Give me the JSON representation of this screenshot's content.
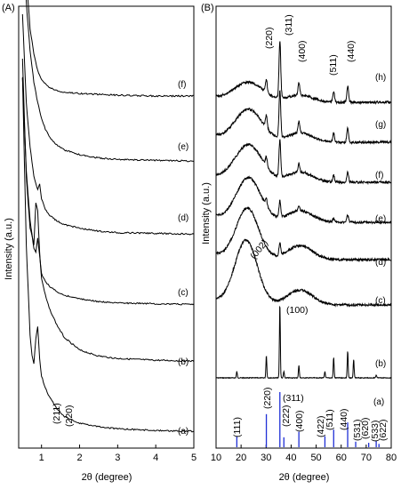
{
  "chart_data": [
    {
      "panel": "(A)",
      "type": "line",
      "xlabel": "2θ (degree)",
      "ylabel": "Intensity (a.u.)",
      "xlim": [
        0.4,
        5
      ],
      "xticks": [
        "1",
        "2",
        "3",
        "4",
        "5"
      ],
      "series": [
        {
          "name": "(a)",
          "x": [
            0.5,
            0.6,
            0.7,
            0.75,
            0.8,
            0.85,
            0.9,
            0.95,
            1.0,
            1.1,
            1.2,
            1.4,
            1.6,
            2.0,
            2.5,
            3,
            4,
            5
          ],
          "y": [
            4.35,
            2.3,
            1.2,
            0.95,
            0.85,
            1.15,
            1.3,
            0.9,
            0.7,
            0.55,
            0.45,
            0.3,
            0.2,
            0.12,
            0.08,
            0.05,
            0.03,
            0.02
          ]
        },
        {
          "name": "(b)",
          "x": [
            0.5,
            0.6,
            0.7,
            0.8,
            0.85,
            0.9,
            0.95,
            1.0,
            1.1,
            1.2,
            1.4,
            1.6,
            2.0,
            2.5,
            3,
            4,
            5
          ],
          "y": [
            3.6,
            2.2,
            1.6,
            1.4,
            1.9,
            1.8,
            1.3,
            1.0,
            0.8,
            0.65,
            0.45,
            0.3,
            0.15,
            0.08,
            0.05,
            0.03,
            0.02
          ]
        },
        {
          "name": "(c)",
          "x": [
            0.5,
            0.6,
            0.7,
            0.8,
            0.85,
            0.9,
            0.95,
            1.0,
            1.1,
            1.2,
            1.4,
            1.6,
            2.0,
            2.5,
            3,
            4,
            5
          ],
          "y": [
            3.2,
            1.9,
            1.2,
            0.8,
            0.75,
            0.95,
            0.7,
            0.45,
            0.35,
            0.28,
            0.2,
            0.15,
            0.1,
            0.06,
            0.04,
            0.03,
            0.02
          ]
        },
        {
          "name": "(d)",
          "x": [
            0.5,
            0.6,
            0.7,
            0.8,
            0.9,
            0.95,
            1.0,
            1.1,
            1.2,
            1.4,
            1.6,
            2.0,
            2.5,
            3,
            4,
            5
          ],
          "y": [
            3.0,
            1.8,
            1.2,
            0.8,
            0.62,
            0.7,
            0.5,
            0.35,
            0.28,
            0.2,
            0.15,
            0.1,
            0.06,
            0.04,
            0.03,
            0.02
          ]
        },
        {
          "name": "(e)",
          "x": [
            0.5,
            0.6,
            0.7,
            0.8,
            0.9,
            1.0,
            1.1,
            1.2,
            1.4,
            1.6,
            2.0,
            2.5,
            3,
            4,
            5
          ],
          "y": [
            3.1,
            2.0,
            1.4,
            1.0,
            0.75,
            0.55,
            0.42,
            0.33,
            0.22,
            0.16,
            0.1,
            0.06,
            0.04,
            0.03,
            0.02
          ]
        },
        {
          "name": "(f)",
          "x": [
            0.5,
            0.55,
            0.6,
            0.7,
            0.8,
            0.9,
            1.0,
            1.2,
            1.5,
            2.0,
            2.5,
            3,
            4,
            5
          ],
          "y": [
            2.9,
            2.0,
            1.4,
            0.8,
            0.5,
            0.3,
            0.2,
            0.1,
            0.05,
            0.03,
            0.02,
            0.01,
            0.0,
            0.0
          ]
        }
      ],
      "peak_labels": [
        "(211)",
        "(220)"
      ]
    },
    {
      "panel": "(B)",
      "type": "line",
      "xlabel": "2θ (degree)",
      "ylabel": "Intensity (a.u.)",
      "xlim": [
        10,
        80
      ],
      "xticks": [
        "10",
        "20",
        "30",
        "40",
        "50",
        "60",
        "70",
        "80"
      ],
      "reference_label": "(a)",
      "reference_lines": [
        {
          "x": 18.3,
          "h": 0.2,
          "label": "(111)"
        },
        {
          "x": 30.1,
          "h": 0.6,
          "label": "(220)"
        },
        {
          "x": 35.5,
          "h": 1.0,
          "label": "(311)"
        },
        {
          "x": 37.1,
          "h": 0.18,
          "label": "(222)"
        },
        {
          "x": 43.1,
          "h": 0.28,
          "label": "(400)"
        },
        {
          "x": 53.5,
          "h": 0.2,
          "label": "(422)"
        },
        {
          "x": 57.0,
          "h": 0.32,
          "label": "(511)"
        },
        {
          "x": 62.6,
          "h": 0.45,
          "label": "(440)"
        },
        {
          "x": 65.8,
          "h": 0.1,
          "label": "(531)"
        },
        {
          "x": 71.0,
          "h": 0.08,
          "label": "(620)"
        },
        {
          "x": 74.0,
          "h": 0.12,
          "label": "(533)"
        },
        {
          "x": 75.1,
          "h": 0.06,
          "label": "(622)"
        }
      ],
      "series": [
        {
          "name": "(b)",
          "kind": "sharp",
          "peaks": [
            [
              18.3,
              0.12
            ],
            [
              30.1,
              0.42
            ],
            [
              35.5,
              1.4
            ],
            [
              37.1,
              0.12
            ],
            [
              43.1,
              0.24
            ],
            [
              53.5,
              0.12
            ],
            [
              57.0,
              0.38
            ],
            [
              62.6,
              0.5
            ],
            [
              65.0,
              0.35
            ],
            [
              74.0,
              0.05
            ]
          ]
        },
        {
          "name": "(c)",
          "kind": "broad",
          "humps": [
            [
              22,
              1.5,
              4.5
            ],
            [
              43.5,
              0.35,
              5
            ]
          ],
          "peaks": []
        },
        {
          "name": "(d)",
          "kind": "broad",
          "humps": [
            [
              22.5,
              1.1,
              4.5
            ],
            [
              43.5,
              0.3,
              5
            ]
          ],
          "peaks": [
            [
              35.5,
              0.25
            ]
          ]
        },
        {
          "name": "(e)",
          "kind": "broad",
          "humps": [
            [
              23,
              0.95,
              5
            ],
            [
              43.5,
              0.25,
              5
            ]
          ],
          "peaks": [
            [
              30.1,
              0.15
            ],
            [
              35.5,
              0.35
            ],
            [
              43.1,
              0.1
            ],
            [
              57.0,
              0.08
            ],
            [
              62.6,
              0.15
            ]
          ]
        },
        {
          "name": "(f)",
          "kind": "broad",
          "humps": [
            [
              23,
              0.8,
              5.5
            ],
            [
              43.5,
              0.22,
              5
            ]
          ],
          "peaks": [
            [
              30.1,
              0.2
            ],
            [
              35.5,
              0.8
            ],
            [
              43.1,
              0.2
            ],
            [
              57.0,
              0.15
            ],
            [
              62.6,
              0.22
            ]
          ]
        },
        {
          "name": "(g)",
          "kind": "broad",
          "humps": [
            [
              23,
              0.7,
              5.5
            ],
            [
              43.5,
              0.2,
              5
            ]
          ],
          "peaks": [
            [
              30.1,
              0.28
            ],
            [
              35.5,
              1.0
            ],
            [
              43.1,
              0.25
            ],
            [
              57.0,
              0.2
            ],
            [
              62.6,
              0.32
            ]
          ]
        },
        {
          "name": "(h)",
          "kind": "broad",
          "humps": [
            [
              23,
              0.55,
              6
            ],
            [
              43.5,
              0.2,
              5
            ]
          ],
          "peaks": [
            [
              30.1,
              0.35
            ],
            [
              35.5,
              1.6
            ],
            [
              43.1,
              0.35
            ],
            [
              57.0,
              0.3
            ],
            [
              62.6,
              0.45
            ]
          ]
        }
      ],
      "annotations": [
        "(002)",
        "(100)",
        "(311)"
      ],
      "peak_labels_top": [
        "(220)",
        "(311)",
        "(400)",
        "(511)",
        "(440)"
      ]
    }
  ],
  "colors": {
    "axis": "#000000",
    "curve": "#000000",
    "reference": "#1f2fd6"
  }
}
